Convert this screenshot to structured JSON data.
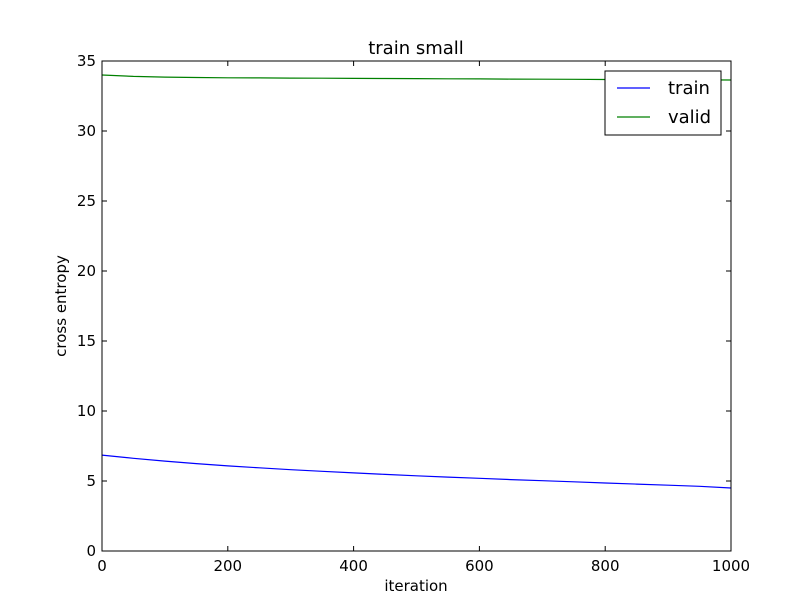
{
  "chart_data": {
    "type": "line",
    "title": "train small",
    "xlabel": "iteration",
    "ylabel": "cross entropy",
    "xlim": [
      0,
      1000
    ],
    "ylim": [
      0,
      35
    ],
    "xticks": [
      "0",
      "200",
      "400",
      "600",
      "800",
      "1000"
    ],
    "yticks": [
      "0",
      "5",
      "10",
      "15",
      "20",
      "25",
      "30",
      "35"
    ],
    "grid": false,
    "legend_position": "top-right",
    "series": [
      {
        "name": "train",
        "color": "#0000ff",
        "x": [
          0,
          50,
          100,
          150,
          200,
          250,
          300,
          350,
          400,
          450,
          500,
          550,
          600,
          650,
          700,
          750,
          800,
          850,
          900,
          950,
          1000
        ],
        "y": [
          6.85,
          6.62,
          6.42,
          6.24,
          6.08,
          5.94,
          5.81,
          5.69,
          5.58,
          5.47,
          5.37,
          5.28,
          5.19,
          5.1,
          5.02,
          4.94,
          4.86,
          4.78,
          4.7,
          4.62,
          4.5
        ]
      },
      {
        "name": "valid",
        "color": "#008000",
        "x": [
          0,
          50,
          100,
          150,
          200,
          250,
          300,
          350,
          400,
          450,
          500,
          550,
          600,
          650,
          700,
          750,
          800,
          850,
          900,
          950,
          1000
        ],
        "y": [
          34.0,
          33.9,
          33.85,
          33.82,
          33.8,
          33.79,
          33.78,
          33.77,
          33.76,
          33.75,
          33.74,
          33.73,
          33.72,
          33.71,
          33.7,
          33.69,
          33.68,
          33.67,
          33.66,
          33.65,
          33.64
        ]
      }
    ]
  }
}
